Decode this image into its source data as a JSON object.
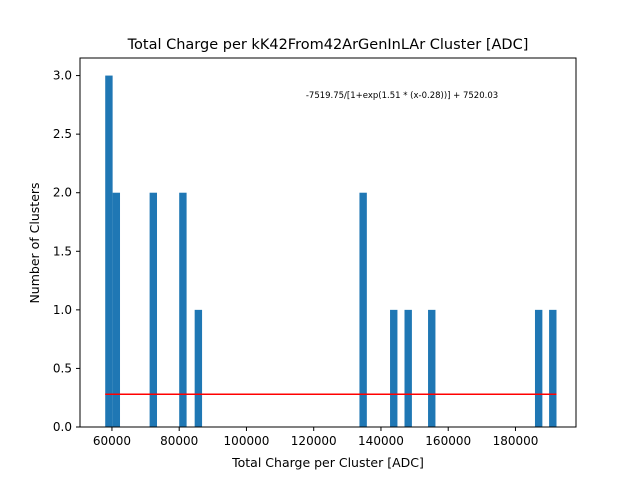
{
  "chart_data": {
    "type": "bar",
    "title": "Total Charge per kK42From42ArGenInLAr Cluster [ADC]",
    "xlabel": "Total Charge per Cluster [ADC]",
    "ylabel": "Number of Clusters",
    "xlim": [
      50500,
      198000
    ],
    "ylim": [
      0,
      3.15
    ],
    "xticks": [
      60000,
      80000,
      100000,
      120000,
      140000,
      160000,
      180000
    ],
    "xtick_labels": [
      "60000",
      "80000",
      "100000",
      "120000",
      "140000",
      "160000",
      "180000"
    ],
    "yticks": [
      0.0,
      0.5,
      1.0,
      1.5,
      2.0,
      2.5,
      3.0
    ],
    "ytick_labels": [
      "0.0",
      "0.5",
      "1.0",
      "1.5",
      "2.0",
      "2.5",
      "3.0"
    ],
    "bars": [
      {
        "x0": 58000,
        "x1": 60200,
        "value": 3
      },
      {
        "x0": 60200,
        "x1": 62400,
        "value": 2
      },
      {
        "x0": 71200,
        "x1": 73400,
        "value": 2
      },
      {
        "x0": 80000,
        "x1": 82200,
        "value": 2
      },
      {
        "x0": 84600,
        "x1": 86800,
        "value": 1
      },
      {
        "x0": 133600,
        "x1": 135800,
        "value": 2
      },
      {
        "x0": 142700,
        "x1": 144900,
        "value": 1
      },
      {
        "x0": 147000,
        "x1": 149200,
        "value": 1
      },
      {
        "x0": 154000,
        "x1": 156200,
        "value": 1
      },
      {
        "x0": 185800,
        "x1": 188000,
        "value": 1
      },
      {
        "x0": 190000,
        "x1": 192200,
        "value": 1
      }
    ],
    "fit_line": {
      "x": [
        58000,
        192200
      ],
      "y": [
        0.28,
        0.28
      ],
      "color": "#ff0000"
    },
    "bar_color": "#1f77b4",
    "annotation": "-7519.75/[1+exp(1.51 * (x-0.28))] + 7520.03",
    "grid": false
  }
}
